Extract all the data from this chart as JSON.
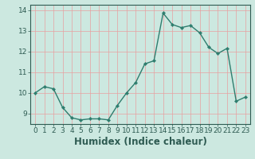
{
  "x": [
    0,
    1,
    2,
    3,
    4,
    5,
    6,
    7,
    8,
    9,
    10,
    11,
    12,
    13,
    14,
    15,
    16,
    17,
    18,
    19,
    20,
    21,
    22,
    23
  ],
  "y": [
    10.0,
    10.3,
    10.2,
    9.3,
    8.8,
    8.7,
    8.75,
    8.75,
    8.7,
    9.4,
    10.0,
    10.5,
    11.4,
    11.55,
    13.85,
    13.3,
    13.15,
    13.25,
    12.9,
    12.2,
    11.9,
    12.15,
    9.6,
    9.8
  ],
  "line_color": "#2e7d6e",
  "marker_color": "#2e7d6e",
  "bg_color": "#cce8e0",
  "grid_color": "#e8a0a0",
  "xlabel": "Humidex (Indice chaleur)",
  "xlim": [
    -0.5,
    23.5
  ],
  "ylim": [
    8.5,
    14.25
  ],
  "yticks": [
    9,
    10,
    11,
    12,
    13,
    14
  ],
  "xticks": [
    0,
    1,
    2,
    3,
    4,
    5,
    6,
    7,
    8,
    9,
    10,
    11,
    12,
    13,
    14,
    15,
    16,
    17,
    18,
    19,
    20,
    21,
    22,
    23
  ],
  "xtick_labels": [
    "0",
    "1",
    "2",
    "3",
    "4",
    "5",
    "6",
    "7",
    "8",
    "9",
    "10",
    "11",
    "12",
    "13",
    "14",
    "15",
    "16",
    "17",
    "18",
    "19",
    "20",
    "21",
    "22",
    "23"
  ],
  "font_color": "#2e5b52",
  "tick_fontsize": 6.5,
  "label_fontsize": 8.5
}
